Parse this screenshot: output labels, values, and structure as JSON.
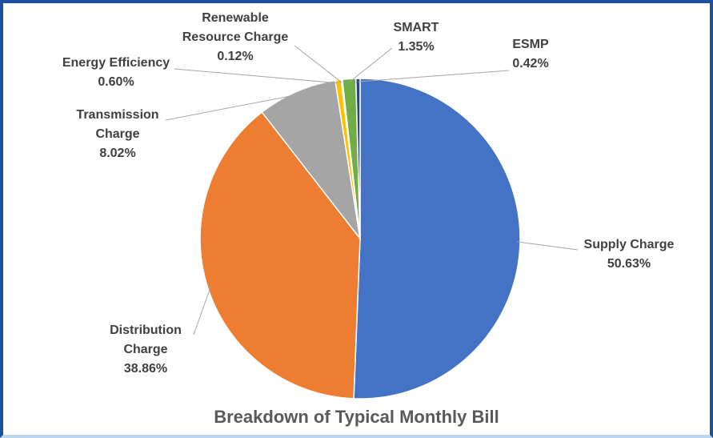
{
  "chart_data": {
    "type": "pie",
    "title": "Breakdown of Typical Monthly Bill",
    "categories": [
      "Supply Charge",
      "Distribution Charge",
      "Transmission Charge",
      "Energy Efficiency",
      "Renewable Resource Charge",
      "SMART",
      "ESMP"
    ],
    "values": [
      50.63,
      38.86,
      8.02,
      0.6,
      0.12,
      1.35,
      0.42
    ],
    "value_labels": [
      "50.63%",
      "38.86%",
      "8.02%",
      "0.60%",
      "0.12%",
      "1.35%",
      "0.42%"
    ],
    "colors": [
      "#4472c4",
      "#ed7d31",
      "#a5a5a5",
      "#ffc000",
      "#5b9bd5",
      "#70ad47",
      "#264478"
    ]
  }
}
